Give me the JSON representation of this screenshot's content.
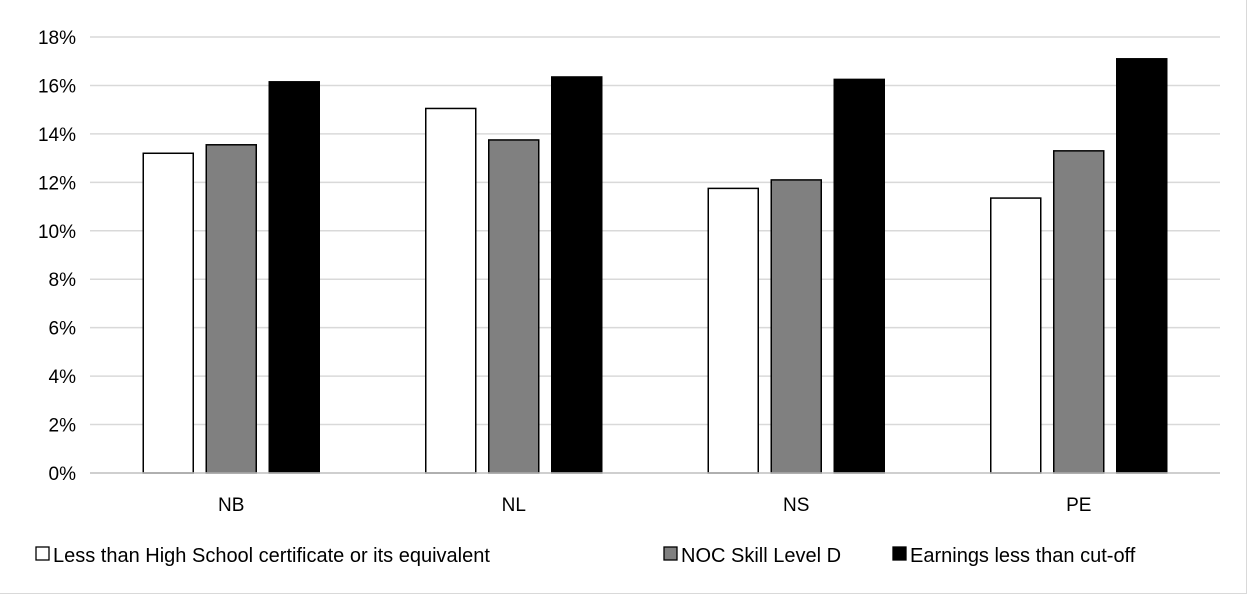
{
  "chart_data": {
    "type": "bar",
    "categories": [
      "NB",
      "NL",
      "NS",
      "PE"
    ],
    "series": [
      {
        "name": "Less than High School certificate or its equivalent",
        "values": [
          13.2,
          15.05,
          11.75,
          11.35
        ],
        "color": "#ffffff"
      },
      {
        "name": "NOC Skill Level D",
        "values": [
          13.55,
          13.75,
          12.1,
          13.3
        ],
        "color": "#808080"
      },
      {
        "name": "Earnings less than cut-off",
        "values": [
          16.15,
          16.35,
          16.25,
          17.1
        ],
        "color": "#000000"
      }
    ],
    "yticks": [
      "0%",
      "2%",
      "4%",
      "6%",
      "8%",
      "10%",
      "12%",
      "14%",
      "16%",
      "18%"
    ],
    "ylim": [
      0,
      18
    ],
    "y_unit": "%",
    "grid": true,
    "legend_position": "bottom"
  }
}
